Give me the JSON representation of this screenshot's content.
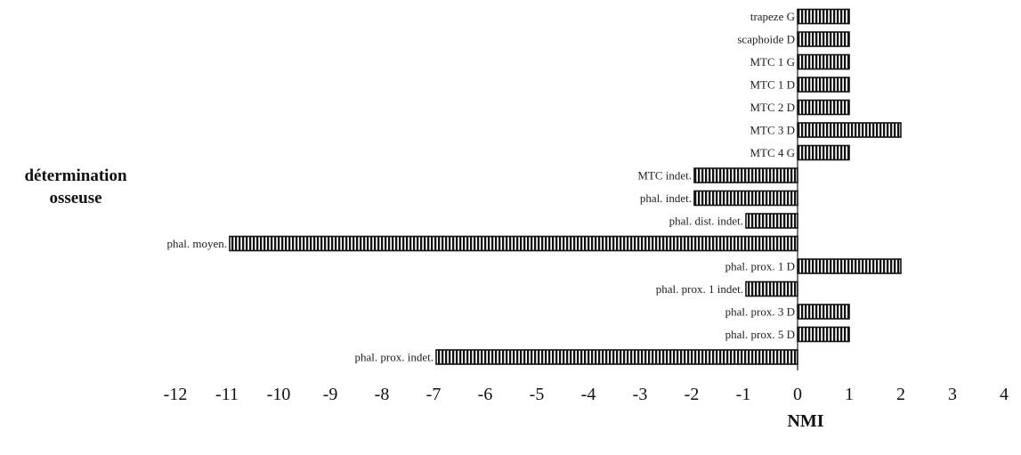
{
  "chart_data": {
    "type": "bar",
    "orientation": "horizontal",
    "title": "",
    "xlabel": "NMI",
    "ylabel_lines": [
      "détermination",
      "osseuse"
    ],
    "xlim": [
      -12,
      4
    ],
    "x_ticks": [
      "-12",
      "-11",
      "-10",
      "-9",
      "-8",
      "-7",
      "-6",
      "-5",
      "-4",
      "-3",
      "-2",
      "-1",
      "0",
      "1",
      "2",
      "3",
      "4"
    ],
    "grid": false,
    "legend": "none",
    "bar_pattern": "vertical-hatch",
    "bar_color": "#111111",
    "categories": [
      "trapeze G",
      "scaphoide D",
      "MTC 1 G",
      "MTC 1 D",
      "MTC 2 D",
      "MTC 3 D",
      "MTC 4 G",
      "MTC indet.",
      "phal. indet.",
      "phal. dist. indet.",
      "phal. moyen.",
      "phal. prox. 1 D",
      "phal. prox. 1 indet.",
      "phal. prox. 3 D",
      "phal. prox. 5 D",
      "phal. prox. indet."
    ],
    "values": [
      1,
      1,
      1,
      1,
      1,
      2,
      1,
      -2,
      -2,
      -1,
      -11,
      2,
      -1,
      1,
      1,
      -7
    ]
  }
}
